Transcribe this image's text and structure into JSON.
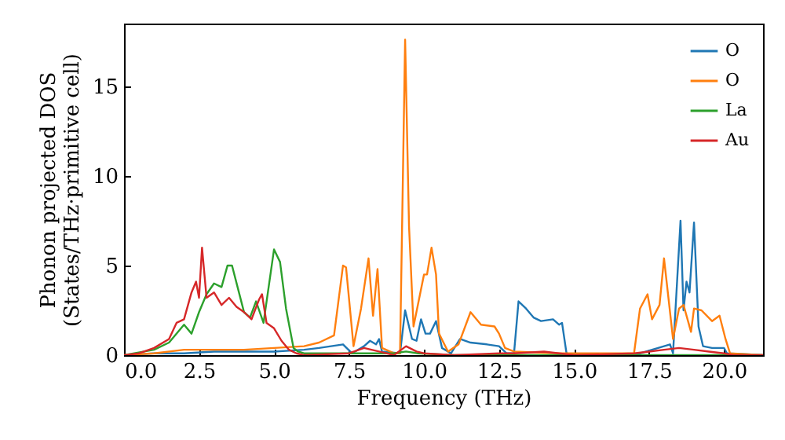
{
  "chart_data": {
    "type": "line",
    "xlabel": "Frequency (THz)",
    "ylabel": "Phonon projected DOS\n(States/THz·primitive cell)",
    "xlim": [
      0,
      21.3
    ],
    "ylim": [
      0,
      18.5
    ],
    "xticks": [
      {
        "value": 0,
        "label": "0.0"
      },
      {
        "value": 2.5,
        "label": "2.5"
      },
      {
        "value": 5,
        "label": "5.0"
      },
      {
        "value": 7.5,
        "label": "7.5"
      },
      {
        "value": 10,
        "label": "10.0"
      },
      {
        "value": 12.5,
        "label": "12.5"
      },
      {
        "value": 15,
        "label": "15.0"
      },
      {
        "value": 17.5,
        "label": "17.5"
      },
      {
        "value": 20,
        "label": "20.0"
      }
    ],
    "yticks": [
      0,
      5,
      10,
      15
    ],
    "grid": false,
    "legend": "top right",
    "line_style": "solid",
    "series": [
      {
        "name": "O",
        "color": "#1f77b4",
        "x": [
          0,
          1,
          2,
          3,
          4,
          5,
          6,
          6.5,
          7.3,
          7.6,
          8.0,
          8.2,
          8.4,
          8.5,
          8.6,
          9.2,
          9.37,
          9.6,
          9.75,
          9.9,
          10.05,
          10.2,
          10.4,
          10.6,
          10.9,
          11.2,
          11.55,
          12.1,
          12.5,
          12.75,
          13.0,
          13.15,
          13.4,
          13.65,
          13.9,
          14.3,
          14.5,
          14.6,
          14.75,
          15,
          17,
          18.0,
          18.2,
          18.3,
          18.55,
          18.65,
          18.75,
          18.85,
          19.0,
          19.15,
          19.3,
          19.6,
          20.0,
          20.1,
          21.3
        ],
        "values": [
          0,
          0.1,
          0.1,
          0.2,
          0.2,
          0.2,
          0.3,
          0.4,
          0.6,
          0.1,
          0.5,
          0.8,
          0.6,
          0.9,
          0.2,
          0.1,
          2.5,
          0.9,
          0.8,
          2.0,
          1.2,
          1.2,
          1.9,
          0.4,
          0.1,
          0.9,
          0.7,
          0.6,
          0.5,
          0.1,
          0.1,
          3.0,
          2.6,
          2.1,
          1.9,
          2.0,
          1.7,
          1.8,
          0.1,
          0,
          0,
          0.5,
          0.6,
          0.1,
          7.5,
          2.5,
          4.1,
          3.5,
          7.4,
          1.6,
          0.5,
          0.4,
          0.4,
          0.1,
          0
        ]
      },
      {
        "name": "O",
        "color": "#ff7f0e",
        "x": [
          0,
          1,
          2,
          3,
          4,
          5,
          6,
          6.5,
          7.0,
          7.3,
          7.4,
          7.65,
          7.9,
          8.15,
          8.3,
          8.45,
          8.6,
          9.0,
          9.2,
          9.37,
          9.5,
          9.65,
          10.0,
          10.1,
          10.25,
          10.4,
          10.5,
          10.8,
          11.15,
          11.55,
          11.9,
          12.35,
          12.5,
          12.7,
          13.0,
          14.5,
          15,
          17.0,
          17.2,
          17.45,
          17.6,
          17.85,
          18.0,
          18.3,
          18.5,
          18.65,
          18.9,
          19.0,
          19.25,
          19.6,
          19.85,
          20.05,
          20.2,
          21.3
        ],
        "values": [
          0,
          0.1,
          0.3,
          0.3,
          0.3,
          0.4,
          0.5,
          0.7,
          1.1,
          5.0,
          4.9,
          0.5,
          2.6,
          5.4,
          2.2,
          4.8,
          0.4,
          0.1,
          0.1,
          17.6,
          7.2,
          1.6,
          4.5,
          4.5,
          6.0,
          4.5,
          1.2,
          0.2,
          0.6,
          2.4,
          1.7,
          1.6,
          1.2,
          0.4,
          0.2,
          0.1,
          0.1,
          0.1,
          2.6,
          3.4,
          2.0,
          2.8,
          5.4,
          0.9,
          2.6,
          2.8,
          1.3,
          2.6,
          2.5,
          1.9,
          2.2,
          0.9,
          0.1,
          0
        ]
      },
      {
        "name": "La",
        "color": "#2ca02c",
        "x": [
          0,
          1,
          1.5,
          2.0,
          2.25,
          2.5,
          2.75,
          3.0,
          3.25,
          3.45,
          3.6,
          3.8,
          4.0,
          4.2,
          4.4,
          4.65,
          5.0,
          5.2,
          5.4,
          5.65,
          5.8,
          6.0,
          7.5,
          9.0,
          9.4,
          9.8,
          11,
          21.3
        ],
        "values": [
          0,
          0.3,
          0.7,
          1.7,
          1.2,
          2.4,
          3.4,
          4.0,
          3.8,
          5.0,
          5.0,
          3.7,
          2.4,
          2.1,
          3.0,
          1.8,
          5.9,
          5.2,
          2.6,
          0.4,
          0.2,
          0.1,
          0.1,
          0.1,
          0.2,
          0.1,
          0,
          0
        ]
      },
      {
        "name": "Au",
        "color": "#d62728",
        "x": [
          0,
          0.5,
          1.0,
          1.5,
          1.75,
          2.0,
          2.25,
          2.4,
          2.5,
          2.6,
          2.75,
          3.0,
          3.25,
          3.5,
          3.75,
          4.0,
          4.25,
          4.5,
          4.6,
          4.75,
          5.0,
          5.25,
          5.5,
          5.75,
          6.0,
          7.5,
          8.0,
          8.5,
          9.0,
          9.4,
          9.75,
          10,
          11,
          12.5,
          13,
          14,
          14.5,
          15,
          17,
          17.5,
          18,
          18.5,
          19,
          19.5,
          20,
          20.3,
          21.3
        ],
        "values": [
          0,
          0.1,
          0.4,
          0.9,
          1.8,
          2.0,
          3.5,
          4.1,
          3.2,
          6.0,
          3.2,
          3.5,
          2.8,
          3.2,
          2.7,
          2.4,
          2.0,
          3.1,
          3.4,
          1.8,
          1.5,
          0.8,
          0.3,
          0.1,
          0,
          0.1,
          0.4,
          0.2,
          0,
          0.5,
          0.2,
          0.1,
          0,
          0.1,
          0.1,
          0.2,
          0.1,
          0,
          0.1,
          0.2,
          0.3,
          0.4,
          0.3,
          0.2,
          0.1,
          0,
          0
        ]
      }
    ]
  }
}
